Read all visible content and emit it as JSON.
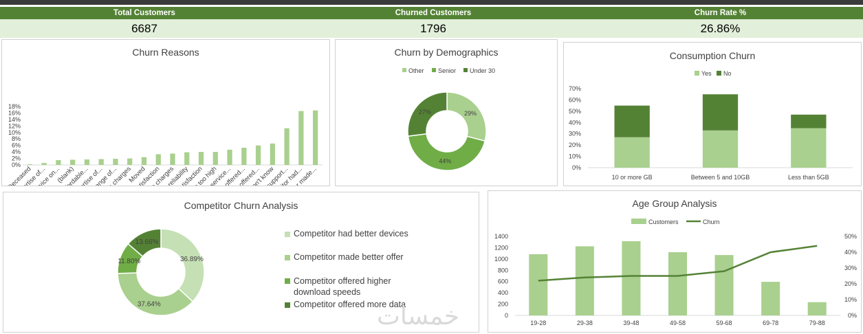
{
  "kpis": [
    {
      "label": "Total Customers",
      "value": "6687"
    },
    {
      "label": "Churned Customers",
      "value": "1796"
    },
    {
      "label": "Churn Rate %",
      "value": "26.86%"
    }
  ],
  "colors": {
    "header_green": "#548235",
    "kpi_bg": "#e2efda",
    "light_green": "#a9d08e",
    "mid_green": "#70ad47",
    "dark_green": "#548235",
    "pale_green": "#c5e0b4"
  },
  "watermark": "خمسات",
  "chart_data": [
    {
      "id": "churn_reasons",
      "type": "bar",
      "title": "Churn Reasons",
      "categories": [
        "Deceased",
        "Poor expertise of...",
        "Lack of self-service on...",
        "(blank)",
        "Lack of affordable...",
        "Poor expertise of...",
        "Limited range of...",
        "Extra data charges",
        "Moved",
        "Service dissatisfaction",
        "Long distance charges",
        "Network reliability",
        "Product dissatisfaction",
        "Price too high",
        "Attitude of service...",
        "Competitor offered...",
        "Competitor offered...",
        "Don't know",
        "Attitude of support...",
        "Competitor had...",
        "Competitor made..."
      ],
      "values": [
        0.2,
        0.6,
        1.5,
        1.6,
        1.7,
        1.8,
        1.9,
        2.0,
        2.4,
        3.3,
        3.5,
        3.9,
        4.0,
        4.0,
        4.7,
        5.3,
        6.0,
        6.6,
        11.3,
        16.6,
        16.8
      ],
      "yticks": [
        "0%",
        "2%",
        "4%",
        "6%",
        "8%",
        "10%",
        "12%",
        "14%",
        "16%",
        "18%"
      ],
      "ylim": [
        0,
        18
      ]
    },
    {
      "id": "churn_demographics",
      "type": "pie",
      "title": "Churn by Demographics",
      "labels": [
        "Other",
        "Senior",
        "Under 30"
      ],
      "values": [
        29,
        44,
        27
      ],
      "value_labels": [
        "29%",
        "44%",
        "27%"
      ],
      "colors": [
        "#a9d08e",
        "#70ad47",
        "#548235"
      ]
    },
    {
      "id": "consumption_churn",
      "type": "bar",
      "stacked": true,
      "title": "Consumption Churn",
      "categories": [
        "10 or more GB",
        "Between 5 and 10GB",
        "Less than 5GB"
      ],
      "series": [
        {
          "name": "Yes",
          "values": [
            27,
            33,
            35
          ],
          "color": "#a9d08e"
        },
        {
          "name": "No",
          "values": [
            28,
            32,
            12
          ],
          "color": "#548235"
        }
      ],
      "yticks": [
        "0%",
        "10%",
        "20%",
        "30%",
        "40%",
        "50%",
        "60%",
        "70%"
      ],
      "ylim": [
        0,
        70
      ]
    },
    {
      "id": "competitor_churn",
      "type": "pie",
      "title": "Competitor Churn Analysis",
      "labels": [
        "Competitor had better devices",
        "Competitor made better offer",
        "Competitor offered higher download speeds",
        "Competitor offered more data"
      ],
      "values": [
        36.89,
        37.64,
        11.8,
        13.66
      ],
      "value_labels": [
        "36.89%",
        "37.64%",
        "11.80%",
        "13.66%"
      ],
      "colors": [
        "#c5e0b4",
        "#a9d08e",
        "#70ad47",
        "#548235"
      ]
    },
    {
      "id": "age_group",
      "type": "bar",
      "title": "Age Group Analysis",
      "categories": [
        "19-28",
        "29-38",
        "39-48",
        "49-58",
        "59-68",
        "69-78",
        "79-88"
      ],
      "series": [
        {
          "name": "Customers",
          "type": "bar",
          "values": [
            1085,
            1225,
            1315,
            1120,
            1070,
            595,
            235
          ],
          "color": "#a9d08e"
        },
        {
          "name": "Churn",
          "type": "line",
          "axis": "right",
          "values": [
            22,
            24,
            25,
            25,
            28,
            40,
            44
          ],
          "color": "#548235"
        }
      ],
      "yticks_left": [
        "0",
        "200",
        "400",
        "600",
        "800",
        "1000",
        "1200",
        "1400"
      ],
      "ylim_left": [
        0,
        1400
      ],
      "yticks_right": [
        "0%",
        "10%",
        "20%",
        "30%",
        "40%",
        "50%"
      ],
      "ylim_right": [
        0,
        50
      ]
    }
  ]
}
